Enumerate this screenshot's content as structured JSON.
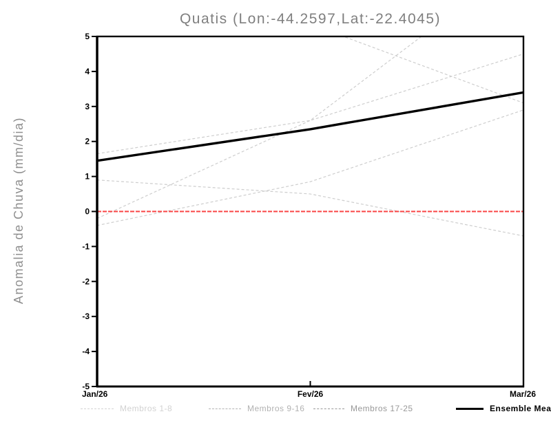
{
  "chart_data": {
    "type": "line",
    "title": "Quatis (Lon:-44.2597,Lat:-22.4045)",
    "ylabel": "Anomalia de Chuva (mm/dia)",
    "x_categories": [
      "Jan/26",
      "Fev/26",
      "Mar/26"
    ],
    "ylim": [
      -5,
      5
    ],
    "yticks": [
      5,
      4,
      3,
      2,
      1,
      0,
      -1,
      -2,
      -3,
      -4,
      -5
    ],
    "grid": false,
    "legend_position": "bottom",
    "zero_line": {
      "value": 0,
      "color": "#fa4545",
      "style": "dashed"
    },
    "series": [
      {
        "name": "Membro",
        "color": "#cdcdcd",
        "style": "dashed",
        "values": [
          1.65,
          2.6,
          4.5
        ]
      },
      {
        "name": "Membro",
        "color": "#cdcdcd",
        "style": "dashed",
        "values": [
          0.9,
          0.5,
          -0.7
        ]
      },
      {
        "name": "Membro",
        "color": "#cdcdcd",
        "style": "dashed",
        "values": [
          -0.2,
          2.6,
          7.2
        ]
      },
      {
        "name": "Membro",
        "color": "#cdcdcd",
        "style": "dashed",
        "values": [
          -0.4,
          0.85,
          2.9
        ]
      },
      {
        "name": "Membro",
        "color": "#cdcdcd",
        "style": "dashed",
        "values": [
          5.6,
          5.35,
          3.1
        ]
      },
      {
        "name": "Ensemble Mean",
        "color": "#000000",
        "style": "solid",
        "values": [
          1.45,
          2.35,
          3.4
        ]
      }
    ],
    "legend": [
      {
        "label": "Membros 1-8",
        "color": "#d2d2d2",
        "style": "dashed"
      },
      {
        "label": "Membros 9-16",
        "color": "#b2b2b2",
        "style": "dashed"
      },
      {
        "label": "Membros 17-25",
        "color": "#989898",
        "style": "dashed"
      },
      {
        "label": "Ensemble Mean",
        "color": "#000000",
        "style": "solid"
      }
    ]
  }
}
